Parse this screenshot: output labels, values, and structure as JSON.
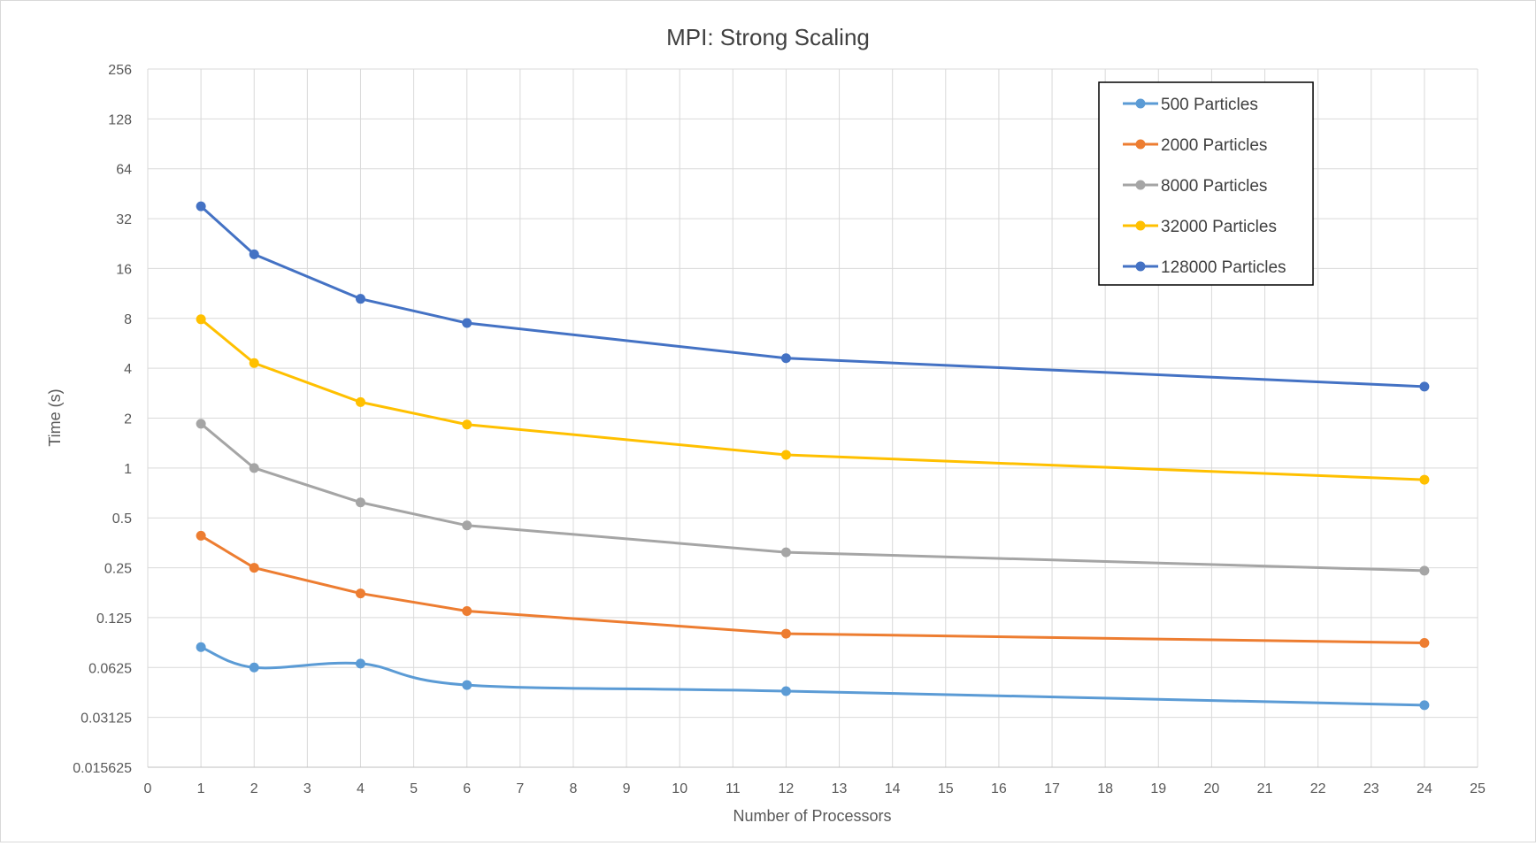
{
  "chart_data": {
    "type": "line",
    "title": "MPI: Strong Scaling",
    "xlabel": "Number of Processors",
    "ylabel": "Time (s)",
    "xlim": [
      0,
      25
    ],
    "x_ticks": [
      0,
      1,
      2,
      3,
      4,
      5,
      6,
      7,
      8,
      9,
      10,
      11,
      12,
      13,
      14,
      15,
      16,
      17,
      18,
      19,
      20,
      21,
      22,
      23,
      24,
      25
    ],
    "y_scale": "log2",
    "ylim": [
      0.015625,
      256
    ],
    "y_ticks": [
      0.015625,
      0.03125,
      0.0625,
      0.125,
      0.25,
      0.5,
      1,
      2,
      4,
      8,
      16,
      32,
      64,
      128,
      256
    ],
    "y_tick_labels": [
      "0.015625",
      "0.03125",
      "0.0625",
      "0.125",
      "0.25",
      "0.5",
      "1",
      "2",
      "4",
      "8",
      "16",
      "32",
      "64",
      "128",
      "256"
    ],
    "grid": true,
    "legend_position": "top-right",
    "x": [
      1,
      2,
      4,
      6,
      12,
      24
    ],
    "series": [
      {
        "name": "500 Particles",
        "color": "#5b9bd5",
        "smooth": true,
        "values": [
          0.083,
          0.0625,
          0.066,
          0.049,
          0.045,
          0.037
        ]
      },
      {
        "name": "2000 Particles",
        "color": "#ed7d31",
        "smooth": false,
        "values": [
          0.39,
          0.25,
          0.175,
          0.137,
          0.1,
          0.088
        ]
      },
      {
        "name": "8000 Particles",
        "color": "#a5a5a5",
        "smooth": false,
        "values": [
          1.85,
          1.0,
          0.62,
          0.45,
          0.31,
          0.24
        ]
      },
      {
        "name": "32000 Particles",
        "color": "#ffc000",
        "smooth": false,
        "values": [
          7.9,
          4.3,
          2.5,
          1.83,
          1.2,
          0.85
        ]
      },
      {
        "name": "128000 Particles",
        "color": "#4472c4",
        "smooth": false,
        "values": [
          38,
          19.5,
          10.5,
          7.5,
          4.6,
          3.1
        ]
      }
    ]
  }
}
